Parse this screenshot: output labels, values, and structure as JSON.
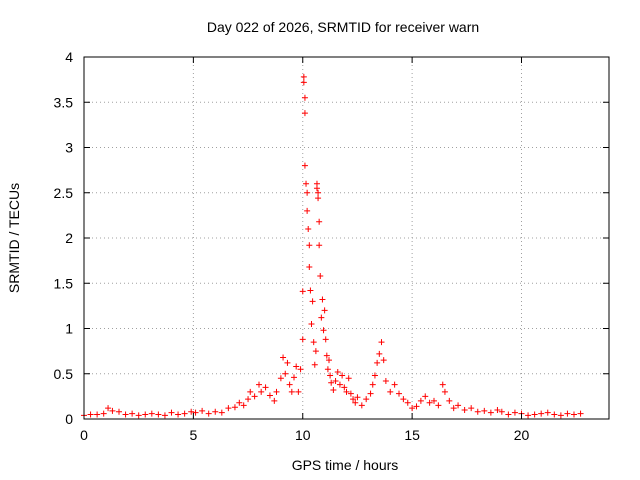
{
  "chart_data": {
    "type": "scatter",
    "title": "Day 022 of 2026, SRMTID for receiver warn",
    "xlabel": "GPS time / hours",
    "ylabel": "SRMTID / TECUs",
    "xlim": [
      0,
      24
    ],
    "ylim": [
      0,
      4
    ],
    "xticks": [
      0,
      5,
      10,
      15,
      20
    ],
    "yticks": [
      0,
      0.5,
      1,
      1.5,
      2,
      2.5,
      3,
      3.5,
      4
    ],
    "ytick_labels": [
      "0",
      "0.5",
      "1",
      "1.5",
      "2",
      "2.5",
      "3",
      "3.5",
      "4"
    ],
    "grid": true,
    "marker": "plus",
    "series_color": "#ff0000",
    "series": [
      {
        "x": [
          0.0,
          0.3,
          0.6,
          0.9,
          1.1,
          1.3,
          1.6,
          1.9,
          2.2,
          2.5,
          2.8,
          3.1,
          3.4,
          3.7,
          4.0,
          4.3,
          4.6,
          4.9,
          5.1,
          5.4,
          5.7,
          6.0,
          6.3,
          6.6,
          6.9,
          7.1,
          7.3,
          7.5,
          7.6,
          7.8,
          8.0,
          8.1,
          8.3,
          8.5,
          8.7,
          8.8,
          9.0,
          9.1,
          9.2,
          9.3,
          9.4,
          9.5,
          9.6,
          9.7,
          9.8,
          9.9,
          10.0,
          10.0,
          10.05,
          10.05,
          10.1,
          10.1,
          10.1,
          10.15,
          10.2,
          10.2,
          10.25,
          10.3,
          10.3,
          10.35,
          10.4,
          10.45,
          10.5,
          10.55,
          10.6,
          10.65,
          10.65,
          10.7,
          10.7,
          10.75,
          10.75,
          10.8,
          10.85,
          10.9,
          10.95,
          11.0,
          11.05,
          11.1,
          11.15,
          11.2,
          11.25,
          11.3,
          11.4,
          11.5,
          11.6,
          11.7,
          11.8,
          11.9,
          12.0,
          12.1,
          12.2,
          12.3,
          12.4,
          12.5,
          12.7,
          12.9,
          13.1,
          13.2,
          13.3,
          13.4,
          13.5,
          13.6,
          13.7,
          13.8,
          14.0,
          14.2,
          14.4,
          14.6,
          14.8,
          15.0,
          15.2,
          15.4,
          15.6,
          15.8,
          16.0,
          16.2,
          16.4,
          16.5,
          16.7,
          16.9,
          17.1,
          17.4,
          17.7,
          18.0,
          18.3,
          18.6,
          18.9,
          19.1,
          19.4,
          19.7,
          20.0,
          20.3,
          20.6,
          20.9,
          21.2,
          21.5,
          21.8,
          22.1,
          22.4,
          22.7
        ],
        "y": [
          0.04,
          0.05,
          0.05,
          0.06,
          0.12,
          0.09,
          0.08,
          0.05,
          0.06,
          0.04,
          0.05,
          0.06,
          0.05,
          0.04,
          0.07,
          0.05,
          0.06,
          0.08,
          0.07,
          0.09,
          0.06,
          0.08,
          0.07,
          0.12,
          0.13,
          0.18,
          0.15,
          0.22,
          0.3,
          0.25,
          0.38,
          0.3,
          0.35,
          0.26,
          0.2,
          0.3,
          0.45,
          0.68,
          0.5,
          0.62,
          0.38,
          0.3,
          0.46,
          0.58,
          0.3,
          0.55,
          0.88,
          1.41,
          3.78,
          3.72,
          3.55,
          3.38,
          2.8,
          2.6,
          2.5,
          2.3,
          2.1,
          1.92,
          1.68,
          1.42,
          1.05,
          1.3,
          0.85,
          0.6,
          0.75,
          2.6,
          2.55,
          2.5,
          2.44,
          2.18,
          1.92,
          1.58,
          1.12,
          1.32,
          0.98,
          1.2,
          0.88,
          0.7,
          0.55,
          0.65,
          0.48,
          0.4,
          0.32,
          0.42,
          0.52,
          0.38,
          0.48,
          0.35,
          0.3,
          0.45,
          0.28,
          0.22,
          0.18,
          0.24,
          0.15,
          0.22,
          0.28,
          0.38,
          0.48,
          0.62,
          0.72,
          0.85,
          0.65,
          0.42,
          0.3,
          0.38,
          0.28,
          0.22,
          0.18,
          0.12,
          0.14,
          0.2,
          0.25,
          0.18,
          0.2,
          0.15,
          0.38,
          0.3,
          0.2,
          0.12,
          0.15,
          0.1,
          0.12,
          0.08,
          0.09,
          0.07,
          0.1,
          0.08,
          0.05,
          0.07,
          0.06,
          0.04,
          0.05,
          0.06,
          0.07,
          0.05,
          0.04,
          0.06,
          0.05,
          0.06
        ]
      }
    ]
  }
}
